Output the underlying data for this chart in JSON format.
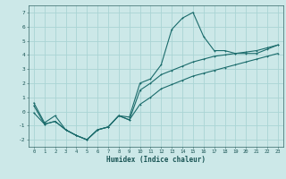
{
  "title": "",
  "xlabel": "Humidex (Indice chaleur)",
  "bg_color": "#cce8e8",
  "grid_color": "#aad4d4",
  "line_color": "#1a6b6b",
  "xlim": [
    -0.5,
    23.5
  ],
  "ylim": [
    -2.5,
    7.5
  ],
  "xticks": [
    0,
    1,
    2,
    3,
    4,
    5,
    6,
    7,
    8,
    9,
    10,
    11,
    12,
    13,
    14,
    15,
    16,
    17,
    18,
    19,
    20,
    21,
    22,
    23
  ],
  "yticks": [
    -2,
    -1,
    0,
    1,
    2,
    3,
    4,
    5,
    6,
    7
  ],
  "line1_x": [
    0,
    1,
    2,
    3,
    4,
    5,
    6,
    7,
    8,
    9,
    10,
    11,
    12,
    13,
    14,
    15,
    16,
    17,
    18,
    19,
    20,
    21,
    22,
    23
  ],
  "line1_y": [
    0.6,
    -0.8,
    -0.3,
    -1.3,
    -1.7,
    -2.0,
    -1.3,
    -1.1,
    -0.3,
    -0.4,
    2.0,
    2.3,
    3.3,
    5.8,
    6.6,
    7.0,
    5.3,
    4.3,
    4.3,
    4.1,
    4.1,
    4.1,
    4.4,
    4.7
  ],
  "line2_x": [
    0,
    1,
    2,
    3,
    4,
    5,
    6,
    7,
    8,
    9,
    10,
    11,
    12,
    13,
    14,
    15,
    16,
    17,
    18,
    19,
    20,
    21,
    22,
    23
  ],
  "line2_y": [
    0.4,
    -0.9,
    -0.7,
    -1.3,
    -1.7,
    -2.0,
    -1.3,
    -1.1,
    -0.3,
    -0.6,
    1.5,
    2.0,
    2.6,
    2.9,
    3.2,
    3.5,
    3.7,
    3.9,
    4.0,
    4.1,
    4.2,
    4.3,
    4.5,
    4.7
  ],
  "line3_x": [
    0,
    1,
    2,
    3,
    4,
    5,
    6,
    7,
    8,
    9,
    10,
    11,
    12,
    13,
    14,
    15,
    16,
    17,
    18,
    19,
    20,
    21,
    22,
    23
  ],
  "line3_y": [
    -0.1,
    -0.9,
    -0.7,
    -1.3,
    -1.7,
    -2.0,
    -1.3,
    -1.1,
    -0.3,
    -0.6,
    0.5,
    1.0,
    1.6,
    1.9,
    2.2,
    2.5,
    2.7,
    2.9,
    3.1,
    3.3,
    3.5,
    3.7,
    3.9,
    4.1
  ]
}
